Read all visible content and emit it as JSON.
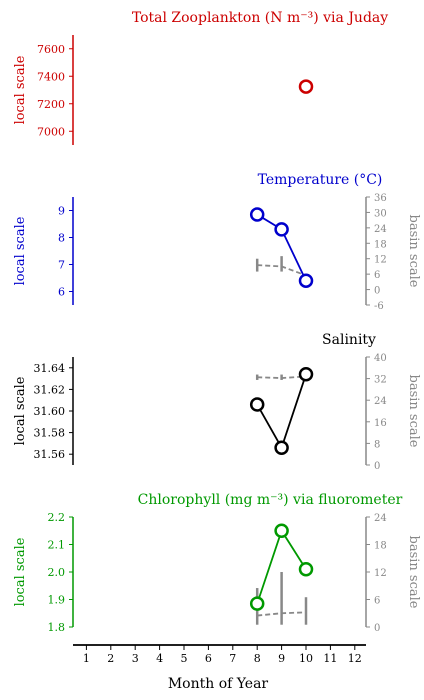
{
  "colors": {
    "zoo": "#cc0000",
    "temp": "#0000cc",
    "sal": "#000000",
    "chl": "#009900",
    "basin": "#888888",
    "axis": "#000000"
  },
  "chart_data": [
    {
      "type": "scatter",
      "title": "Total Zooplankton (N m⁻³) via Juday",
      "ylabel": "local scale",
      "ylim": [
        6900,
        7700
      ],
      "yticks": [
        7000,
        7200,
        7400,
        7600
      ],
      "points": [
        {
          "x": 10,
          "y": 7325
        }
      ]
    },
    {
      "type": "line",
      "title": "Temperature (°C)",
      "ylabel": "local scale",
      "ylabel_right": "basin scale",
      "ylim": [
        5.5,
        9.5
      ],
      "yticks": [
        6,
        7,
        8,
        9
      ],
      "y2lim": [
        -6,
        36
      ],
      "y2ticks": [
        -6,
        0,
        6,
        12,
        18,
        24,
        30,
        36
      ],
      "x": [
        8,
        9,
        10
      ],
      "y": [
        8.85,
        8.3,
        6.4
      ],
      "basin_mean": [
        9.5,
        9.0,
        5.5
      ],
      "basin_range": [
        [
          7,
          12
        ],
        [
          7,
          13
        ],
        [
          null,
          null
        ]
      ]
    },
    {
      "type": "line",
      "title": "Salinity",
      "ylabel": "local scale",
      "ylabel_right": "basin scale",
      "ylim": [
        31.55,
        31.65
      ],
      "yticks": [
        31.56,
        31.58,
        31.6,
        31.62,
        31.64
      ],
      "y2lim": [
        0,
        40
      ],
      "y2ticks": [
        0,
        8,
        16,
        24,
        32,
        40
      ],
      "x": [
        8,
        9,
        10
      ],
      "y": [
        31.606,
        31.566,
        31.634
      ],
      "basin_mean": [
        32.5,
        32.2,
        32.8
      ],
      "basin_range": [
        [
          31.5,
          33.5
        ],
        [
          31.5,
          33.5
        ],
        [
          null,
          null
        ]
      ]
    },
    {
      "type": "line",
      "title": "Chlorophyll (mg m⁻³) via fluorometer",
      "ylabel": "local scale",
      "ylabel_right": "basin scale",
      "ylim": [
        1.8,
        2.2
      ],
      "yticks": [
        1.8,
        1.9,
        2.0,
        2.1,
        2.2
      ],
      "y2lim": [
        0,
        24
      ],
      "y2ticks": [
        0,
        6,
        12,
        18,
        24
      ],
      "x": [
        8,
        9,
        10
      ],
      "y": [
        1.885,
        2.15,
        2.01
      ],
      "basin_mean": [
        2.5,
        3.0,
        3.2
      ],
      "basin_range": [
        [
          0.5,
          8.5
        ],
        [
          0.5,
          12
        ],
        [
          0.5,
          6.5
        ]
      ]
    }
  ],
  "xaxis": {
    "label": "Month of Year",
    "ticks": [
      1,
      2,
      3,
      4,
      5,
      6,
      7,
      8,
      9,
      10,
      11,
      12
    ]
  }
}
